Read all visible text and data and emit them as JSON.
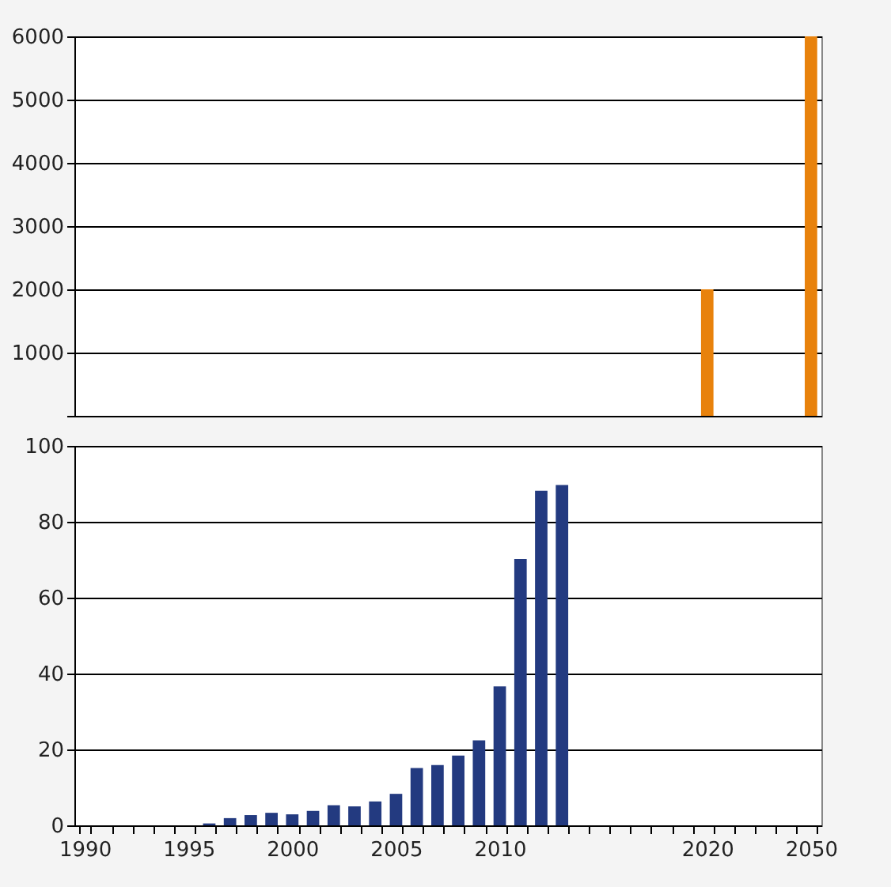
{
  "chart_data": [
    {
      "type": "bar",
      "categories": [
        "1990",
        null,
        null,
        null,
        null,
        "1995",
        null,
        null,
        null,
        null,
        "2000",
        null,
        null,
        null,
        null,
        "2005",
        null,
        null,
        null,
        null,
        "2010",
        null,
        null,
        null,
        null,
        null,
        null,
        null,
        null,
        null,
        "2020",
        null,
        null,
        null,
        null,
        "2050"
      ],
      "series": [
        {
          "color": "#e8820c",
          "values": [
            null,
            null,
            null,
            null,
            null,
            null,
            null,
            null,
            null,
            null,
            null,
            null,
            null,
            null,
            null,
            null,
            null,
            null,
            null,
            null,
            null,
            null,
            null,
            null,
            null,
            null,
            null,
            null,
            null,
            null,
            2000,
            null,
            null,
            null,
            null,
            6000
          ]
        }
      ],
      "ylim": [
        0,
        6000
      ],
      "yticks": [
        {
          "value": 0,
          "label": null
        },
        1000,
        2000,
        3000,
        4000,
        5000,
        6000
      ],
      "grid": "y",
      "tick_labels": "y"
    },
    {
      "type": "bar",
      "categories": [
        "1990",
        null,
        null,
        null,
        null,
        "1995",
        null,
        null,
        null,
        null,
        "2000",
        null,
        null,
        null,
        null,
        "2005",
        null,
        null,
        null,
        null,
        "2010",
        null,
        null,
        null,
        null,
        null,
        null,
        null,
        null,
        null,
        "2020",
        null,
        null,
        null,
        null,
        "2050"
      ],
      "series": [
        {
          "color": "#233a80",
          "values": [
            0,
            0,
            0,
            0,
            0,
            0,
            0.5,
            1.9,
            2.7,
            3.3,
            2.9,
            3.8,
            5.3,
            5.0,
            6.3,
            8.3,
            15.1,
            15.9,
            18.4,
            22.4,
            36.6,
            70.2,
            88.2,
            89.7,
            null,
            null,
            null,
            null,
            null,
            null,
            null,
            null,
            null,
            null,
            null,
            null
          ]
        }
      ],
      "ylim": [
        0,
        100
      ],
      "yticks": [
        0,
        20,
        40,
        60,
        80,
        100
      ],
      "grid": "y"
    }
  ]
}
